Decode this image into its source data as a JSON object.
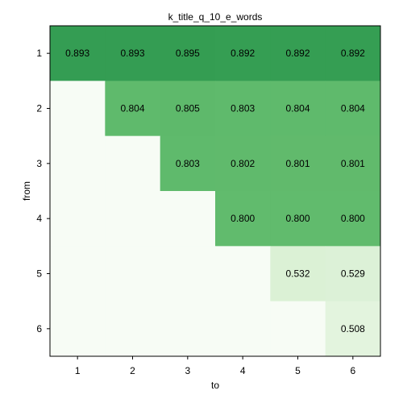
{
  "chart_data": {
    "type": "heatmap",
    "title": "k_title_q_10_e_words",
    "xlabel": "to",
    "ylabel": "from",
    "x_categories": [
      "1",
      "2",
      "3",
      "4",
      "5",
      "6"
    ],
    "y_categories": [
      "1",
      "2",
      "3",
      "4",
      "5",
      "6"
    ],
    "values": [
      [
        0.893,
        0.893,
        0.895,
        0.892,
        0.892,
        0.892
      ],
      [
        null,
        0.804,
        0.805,
        0.803,
        0.804,
        0.804
      ],
      [
        null,
        null,
        0.803,
        0.802,
        0.801,
        0.801
      ],
      [
        null,
        null,
        null,
        0.8,
        0.8,
        0.8
      ],
      [
        null,
        null,
        null,
        null,
        0.532,
        0.529
      ],
      [
        null,
        null,
        null,
        null,
        null,
        0.508
      ]
    ],
    "colormap": "Greens",
    "empty_color": "#f7fcf5",
    "value_range": [
      0.0,
      1.0
    ],
    "grid": false,
    "legend": "none"
  }
}
